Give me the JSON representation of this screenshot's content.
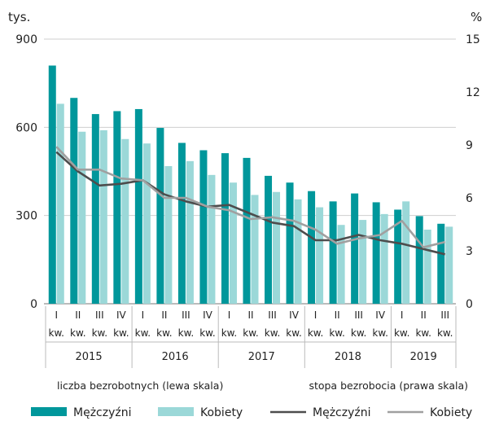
{
  "chart_data": {
    "type": "bar",
    "left_axis": {
      "unit": "tys.",
      "ticks": [
        "0",
        "300",
        "600",
        "900"
      ],
      "ylim": [
        0,
        900
      ]
    },
    "right_axis": {
      "unit": "%",
      "ticks": [
        "0",
        "3",
        "6",
        "9",
        "12",
        "15"
      ],
      "ylim": [
        0,
        15
      ]
    },
    "categories": [
      [
        "I",
        "kw."
      ],
      [
        "II",
        "kw."
      ],
      [
        "III",
        "kw."
      ],
      [
        "IV",
        "kw."
      ],
      [
        "I",
        "kw."
      ],
      [
        "II",
        "kw."
      ],
      [
        "III",
        "kw."
      ],
      [
        "IV",
        "kw."
      ],
      [
        "I",
        "kw."
      ],
      [
        "II",
        "kw."
      ],
      [
        "III",
        "kw."
      ],
      [
        "IV",
        "kw."
      ],
      [
        "I",
        "kw."
      ],
      [
        "II",
        "kw."
      ],
      [
        "III",
        "kw."
      ],
      [
        "IV",
        "kw."
      ],
      [
        "I",
        "kw."
      ],
      [
        "II",
        "kw."
      ],
      [
        "III",
        "kw."
      ]
    ],
    "years": [
      {
        "label": "2015",
        "quarters": 4
      },
      {
        "label": "2016",
        "quarters": 4
      },
      {
        "label": "2017",
        "quarters": 4
      },
      {
        "label": "2018",
        "quarters": 4
      },
      {
        "label": "2019",
        "quarters": 3
      }
    ],
    "bar_series": [
      {
        "name": "Mężczyźni",
        "color": "#00979b",
        "values": [
          810,
          700,
          645,
          655,
          662,
          598,
          547,
          522,
          512,
          496,
          435,
          412,
          383,
          348,
          375,
          345,
          320,
          298,
          272
        ]
      },
      {
        "name": "Kobiety",
        "color": "#9bd8d8",
        "values": [
          680,
          585,
          590,
          560,
          545,
          468,
          485,
          438,
          412,
          370,
          380,
          355,
          328,
          268,
          285,
          305,
          348,
          252,
          262
        ]
      }
    ],
    "line_series": [
      {
        "name": "Mężczyźni",
        "color": "#4d4d4d",
        "values": [
          8.6,
          7.5,
          6.7,
          6.8,
          7.0,
          6.2,
          5.8,
          5.5,
          5.6,
          5.1,
          4.6,
          4.4,
          3.6,
          3.6,
          3.9,
          3.6,
          3.4,
          3.1,
          2.8
        ]
      },
      {
        "name": "Kobiety",
        "color": "#a0a0a0",
        "values": [
          8.9,
          7.6,
          7.6,
          7.1,
          7.0,
          6.0,
          6.0,
          5.5,
          5.3,
          4.8,
          4.9,
          4.7,
          4.2,
          3.4,
          3.7,
          3.9,
          4.7,
          3.2,
          3.5
        ]
      }
    ],
    "grid": true,
    "notes": {
      "left": "liczba bezrobotnych (lewa skala)",
      "right": "stopa bezrobocia (prawa skala)"
    },
    "legend_position": "bottom"
  }
}
